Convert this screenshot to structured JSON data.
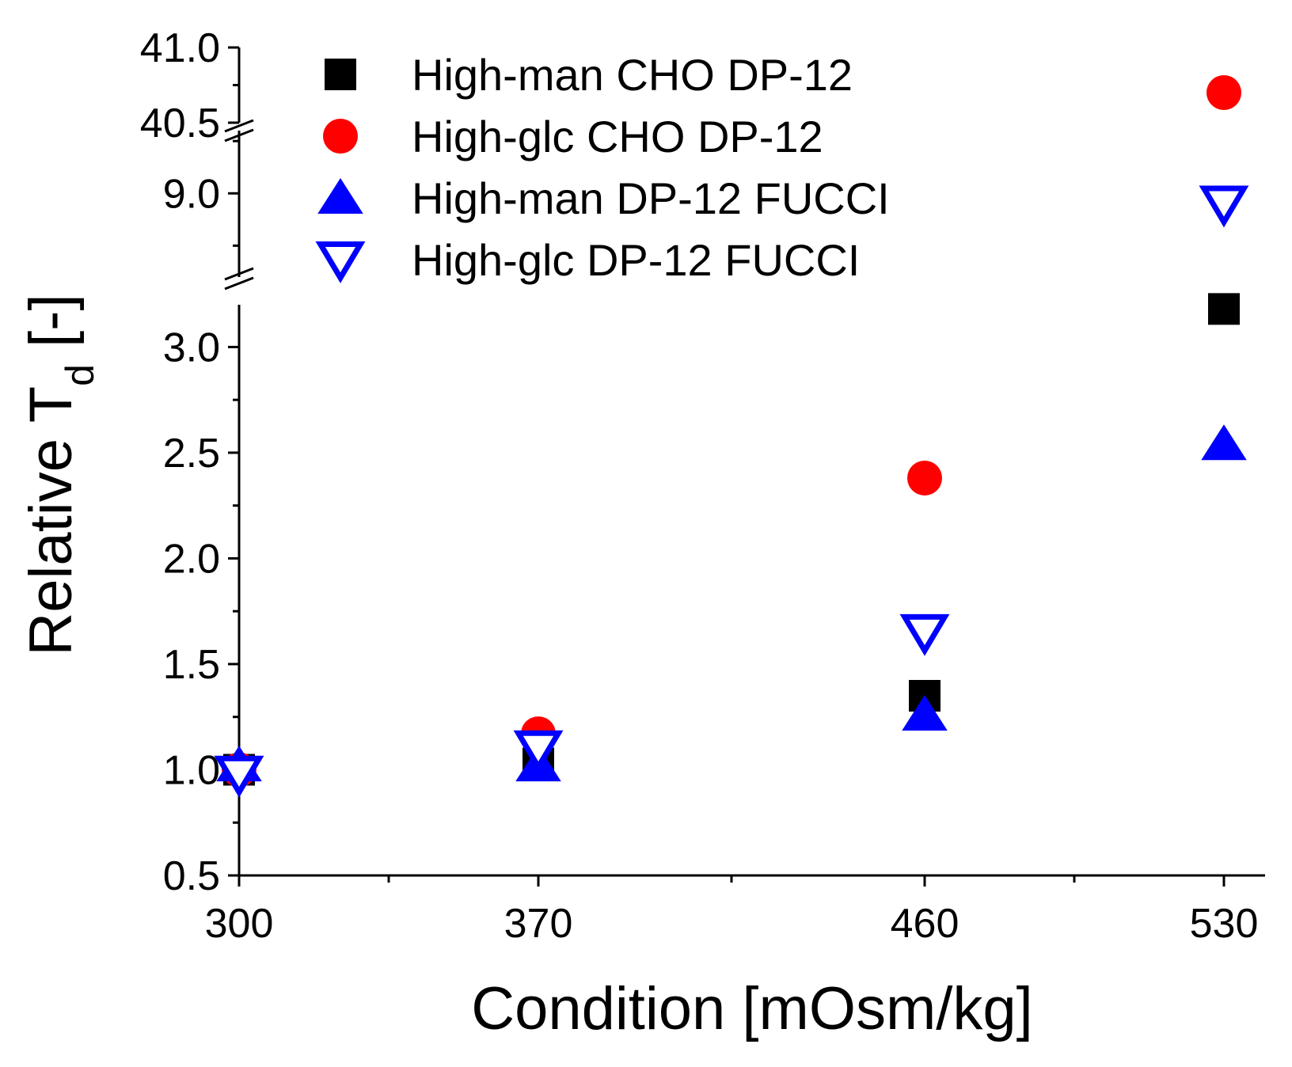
{
  "chart_data": {
    "type": "scatter",
    "xlabel": "Condition [mOsm/kg]",
    "ylabel_main": "Relative T",
    "ylabel_sub": "d",
    "ylabel_suffix": " [-]",
    "categories": [
      "300",
      "370",
      "460",
      "530"
    ],
    "x": [
      300,
      370,
      460,
      530
    ],
    "xlim": [
      300,
      530
    ],
    "y_segments": [
      {
        "range": [
          0.5,
          3.2
        ],
        "ticks": [
          "0.5",
          "1.0",
          "1.5",
          "2.0",
          "2.5",
          "3.0"
        ]
      },
      {
        "range": [
          8.6,
          9.3
        ],
        "ticks": [
          "9.0"
        ]
      },
      {
        "range": [
          40.5,
          41.0
        ],
        "ticks": [
          "40.5",
          "41.0"
        ]
      }
    ],
    "series": [
      {
        "name": "High-man CHO DP-12",
        "marker": "square-filled",
        "color": "#000000",
        "values": [
          1.0,
          1.03,
          1.35,
          3.18
        ]
      },
      {
        "name": "High-glc CHO DP-12",
        "marker": "circle-filled",
        "color": "#ff0000",
        "values": [
          1.0,
          1.17,
          2.38,
          40.7
        ]
      },
      {
        "name": "High-man DP-12 FUCCI",
        "marker": "triangle-up-filled",
        "color": "#0000ff",
        "values": [
          1.02,
          1.02,
          1.26,
          2.54
        ]
      },
      {
        "name": "High-glc DP-12 FUCCI",
        "marker": "triangle-down-open",
        "color": "#0000ff",
        "values": [
          0.98,
          1.1,
          1.65,
          8.95
        ]
      }
    ],
    "legend_position": "top-left"
  }
}
